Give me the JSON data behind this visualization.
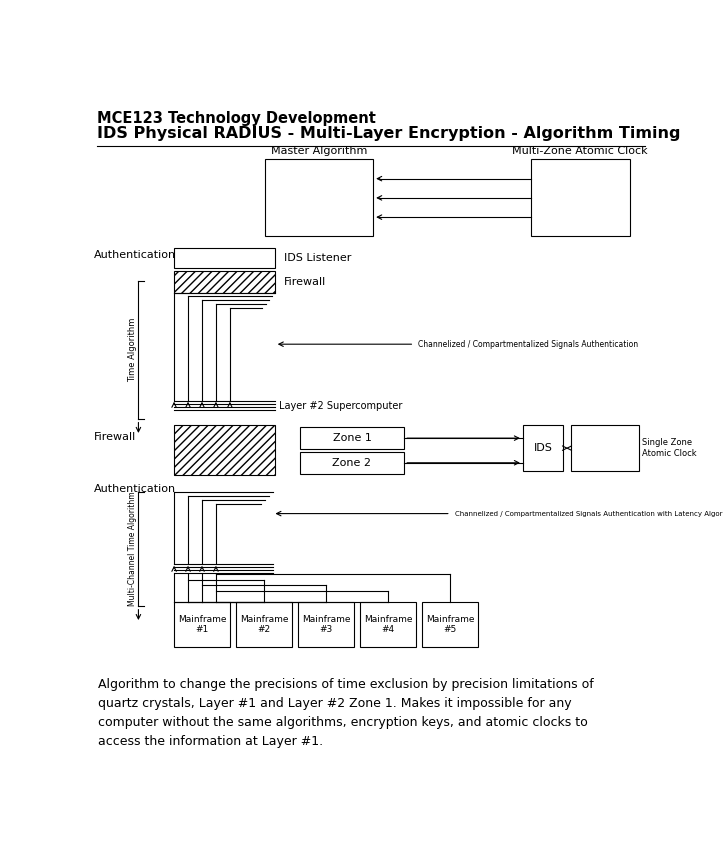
{
  "title1": "MCE123 Technology Development",
  "title2": "IDS Physical RADIUS - Multi-Layer Encryption - Algorithm Timing",
  "bg_color": "#ffffff",
  "footer_text": "Algorithm to change the precisions of time exclusion by precision limitations of\nquartz crystals, Layer #1 and Layer #2 Zone 1. Makes it impossible for any\ncomputer without the same algorithms, encryption keys, and atomic clocks to\naccess the information at Layer #1.",
  "master_alg_label": "Master Algorithm",
  "multi_zone_label": "Multi-Zone Atomic Clock",
  "ids_listener_label": "IDS Listener",
  "firewall_label": "Firewall",
  "auth_label": "Authentication",
  "time_alg_label": "Time Algorithm",
  "layer2_label": "Layer #2 Supercomputer",
  "chan_sig_label": "Channelized / Compartmentalized Signals Authentication",
  "single_zone_label": "Single Zone\nAtomic Clock",
  "zone1_label": "Zone 1",
  "zone2_label": "Zone 2",
  "ids_label": "IDS",
  "multichan_label": "Multi-Channel Time Algorithm",
  "chan_sig_lat_label": "Channelized / Compartmentalized Signals Authentication with Latency Algorithm Detection",
  "mainframe_labels": [
    "Mainframe\n#1",
    "Mainframe\n#2",
    "Mainframe\n#3",
    "Mainframe\n#4",
    "Mainframe\n#5"
  ]
}
